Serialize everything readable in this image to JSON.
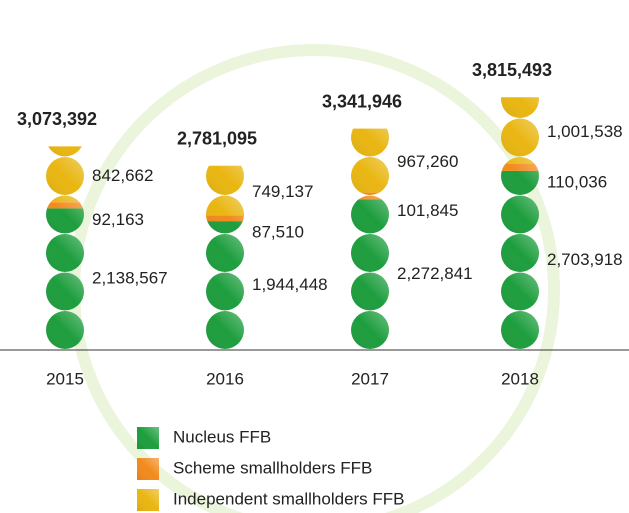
{
  "chart_data": {
    "type": "pictogram_stacked_bar",
    "categories": [
      "2015",
      "2016",
      "2017",
      "2018"
    ],
    "series": [
      {
        "name": "Nucleus FFB",
        "color": "#1e9e3e",
        "values": [
          2138567,
          1944448,
          2272841,
          2703918
        ],
        "value_labels": [
          "2,138,567",
          "1,944,448",
          "2,272,841",
          "2,703,918"
        ]
      },
      {
        "name": "Scheme smallholders FFB",
        "color": "#f28a1e",
        "values": [
          92163,
          87510,
          101845,
          110036
        ],
        "value_labels": [
          "92,163",
          "87,510",
          "101,845",
          "110,036"
        ]
      },
      {
        "name": "Independent smallholders FFB",
        "color": "#e9b612",
        "values": [
          842662,
          749137,
          967260,
          1001538
        ],
        "value_labels": [
          "842,662",
          "749,137",
          "967,260",
          "1,001,538"
        ]
      }
    ],
    "totals": [
      3073392,
      2781095,
      3341946,
      3815493
    ],
    "total_labels": [
      "3,073,392",
      "2,781,095",
      "3,341,946",
      "3,815,493"
    ],
    "ylim": [
      0,
      4000000
    ]
  }
}
